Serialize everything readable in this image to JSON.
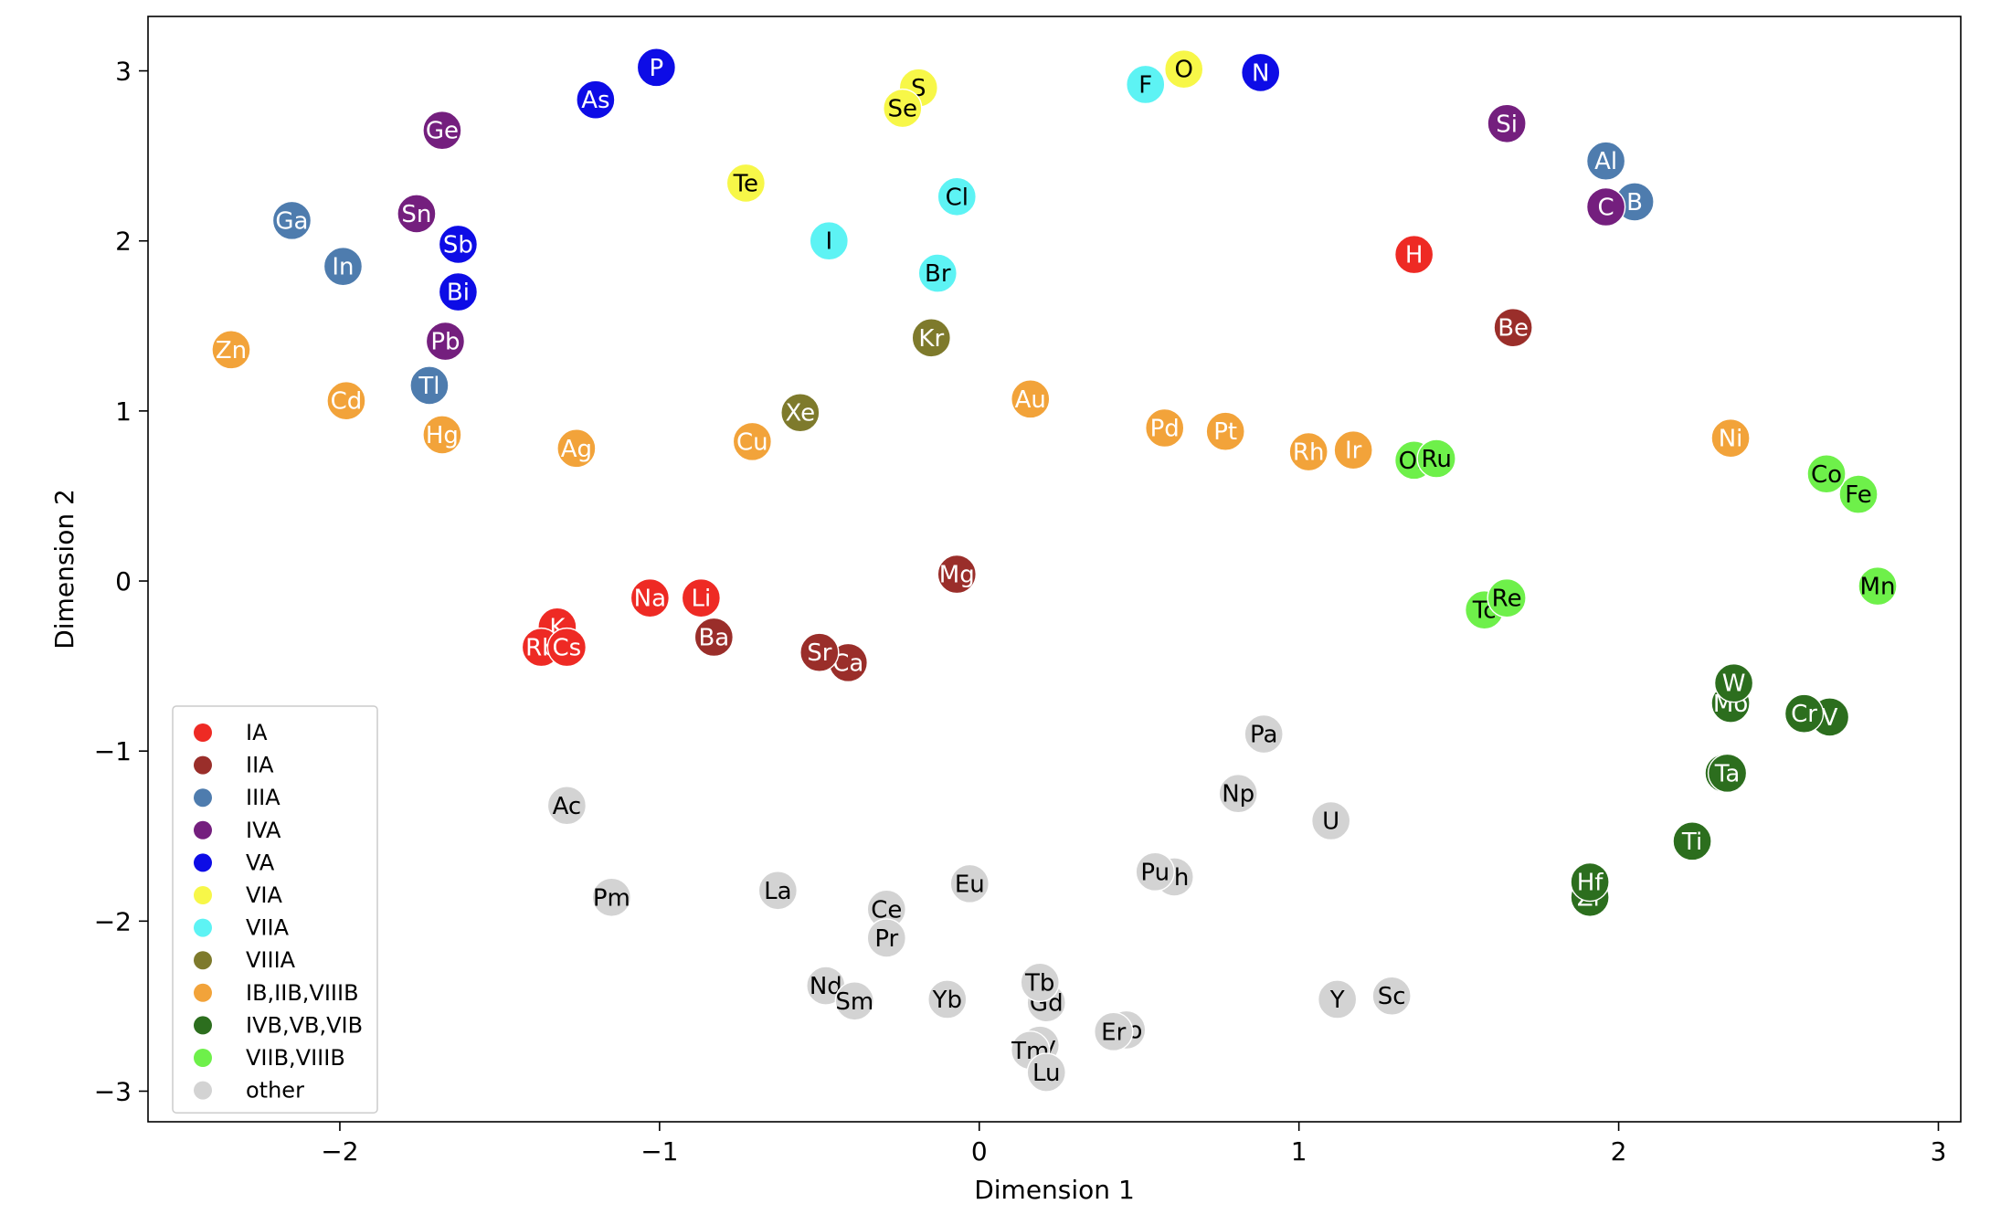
{
  "chart_data": {
    "type": "scatter",
    "title": "",
    "xlabel": "Dimension 1",
    "ylabel": "Dimension 2",
    "xlim": [
      -2.6,
      3.07
    ],
    "ylim": [
      -3.18,
      3.32
    ],
    "xticks": [
      -2,
      -1,
      0,
      1,
      2,
      3
    ],
    "yticks": [
      -3,
      -2,
      -1,
      0,
      1,
      2,
      3
    ],
    "xtick_labels": [
      "−2",
      "−1",
      "0",
      "1",
      "2",
      "3"
    ],
    "ytick_labels": [
      "−3",
      "−2",
      "−1",
      "0",
      "1",
      "2",
      "3"
    ],
    "grid": false,
    "legend_position": "lower-left",
    "groups": [
      {
        "name": "IA",
        "color": "#ee2a24",
        "label_color": "#ffffff"
      },
      {
        "name": "IIA",
        "color": "#9a2e2a",
        "label_color": "#ffffff"
      },
      {
        "name": "IIIA",
        "color": "#4e7cae",
        "label_color": "#ffffff"
      },
      {
        "name": "IVA",
        "color": "#741f7e",
        "label_color": "#ffffff"
      },
      {
        "name": "VA",
        "color": "#0d0ce6",
        "label_color": "#ffffff"
      },
      {
        "name": "VIA",
        "color": "#f7f748",
        "label_color": "#000000"
      },
      {
        "name": "VIIA",
        "color": "#5df3f4",
        "label_color": "#000000"
      },
      {
        "name": "VIIIA",
        "color": "#7e7a2c",
        "label_color": "#ffffff"
      },
      {
        "name": "IB,IIB,VIIIB",
        "color": "#f2a33a",
        "label_color": "#ffffff"
      },
      {
        "name": "IVB,VB,VIB",
        "color": "#2c6e1e",
        "label_color": "#ffffff"
      },
      {
        "name": "VIIB,VIIIB",
        "color": "#6ef04a",
        "label_color": "#000000"
      },
      {
        "name": "other",
        "color": "#d3d3d3",
        "label_color": "#000000"
      }
    ],
    "points": [
      {
        "label": "Li",
        "x": -0.87,
        "y": -0.1,
        "group": "IA"
      },
      {
        "label": "Na",
        "x": -1.03,
        "y": -0.1,
        "group": "IA"
      },
      {
        "label": "K",
        "x": -1.32,
        "y": -0.27,
        "group": "IA"
      },
      {
        "label": "Rb",
        "x": -1.37,
        "y": -0.39,
        "group": "IA"
      },
      {
        "label": "Cs",
        "x": -1.29,
        "y": -0.39,
        "group": "IA"
      },
      {
        "label": "H",
        "x": 1.36,
        "y": 1.92,
        "group": "IA"
      },
      {
        "label": "Be",
        "x": 1.67,
        "y": 1.49,
        "group": "IIA"
      },
      {
        "label": "Mg",
        "x": -0.07,
        "y": 0.04,
        "group": "IIA"
      },
      {
        "label": "Ca",
        "x": -0.41,
        "y": -0.48,
        "group": "IIA"
      },
      {
        "label": "Sr",
        "x": -0.5,
        "y": -0.42,
        "group": "IIA"
      },
      {
        "label": "Ba",
        "x": -0.83,
        "y": -0.33,
        "group": "IIA"
      },
      {
        "label": "B",
        "x": 2.05,
        "y": 2.23,
        "group": "IIIA"
      },
      {
        "label": "Al",
        "x": 1.96,
        "y": 2.47,
        "group": "IIIA"
      },
      {
        "label": "Ga",
        "x": -2.15,
        "y": 2.12,
        "group": "IIIA"
      },
      {
        "label": "In",
        "x": -1.99,
        "y": 1.85,
        "group": "IIIA"
      },
      {
        "label": "Tl",
        "x": -1.72,
        "y": 1.15,
        "group": "IIIA"
      },
      {
        "label": "C",
        "x": 1.96,
        "y": 2.2,
        "group": "IVA"
      },
      {
        "label": "Si",
        "x": 1.65,
        "y": 2.69,
        "group": "IVA"
      },
      {
        "label": "Ge",
        "x": -1.68,
        "y": 2.65,
        "group": "IVA"
      },
      {
        "label": "Sn",
        "x": -1.76,
        "y": 2.16,
        "group": "IVA"
      },
      {
        "label": "Pb",
        "x": -1.67,
        "y": 1.41,
        "group": "IVA"
      },
      {
        "label": "N",
        "x": 0.88,
        "y": 2.99,
        "group": "VA"
      },
      {
        "label": "P",
        "x": -1.01,
        "y": 3.02,
        "group": "VA"
      },
      {
        "label": "As",
        "x": -1.2,
        "y": 2.83,
        "group": "VA"
      },
      {
        "label": "Sb",
        "x": -1.63,
        "y": 1.98,
        "group": "VA"
      },
      {
        "label": "Bi",
        "x": -1.63,
        "y": 1.7,
        "group": "VA"
      },
      {
        "label": "O",
        "x": 0.64,
        "y": 3.01,
        "group": "VIA"
      },
      {
        "label": "S",
        "x": -0.19,
        "y": 2.9,
        "group": "VIA"
      },
      {
        "label": "Se",
        "x": -0.24,
        "y": 2.78,
        "group": "VIA"
      },
      {
        "label": "Te",
        "x": -0.73,
        "y": 2.34,
        "group": "VIA"
      },
      {
        "label": "F",
        "x": 0.52,
        "y": 2.92,
        "group": "VIIA"
      },
      {
        "label": "Cl",
        "x": -0.07,
        "y": 2.26,
        "group": "VIIA"
      },
      {
        "label": "Br",
        "x": -0.13,
        "y": 1.81,
        "group": "VIIA"
      },
      {
        "label": "I",
        "x": -0.47,
        "y": 2.0,
        "group": "VIIA"
      },
      {
        "label": "Kr",
        "x": -0.15,
        "y": 1.43,
        "group": "VIIIA"
      },
      {
        "label": "Xe",
        "x": -0.56,
        "y": 0.99,
        "group": "VIIIA"
      },
      {
        "label": "Zn",
        "x": -2.34,
        "y": 1.36,
        "group": "IB,IIB,VIIIB"
      },
      {
        "label": "Cd",
        "x": -1.98,
        "y": 1.06,
        "group": "IB,IIB,VIIIB"
      },
      {
        "label": "Hg",
        "x": -1.68,
        "y": 0.86,
        "group": "IB,IIB,VIIIB"
      },
      {
        "label": "Ag",
        "x": -1.26,
        "y": 0.78,
        "group": "IB,IIB,VIIIB"
      },
      {
        "label": "Cu",
        "x": -0.71,
        "y": 0.82,
        "group": "IB,IIB,VIIIB"
      },
      {
        "label": "Au",
        "x": 0.16,
        "y": 1.07,
        "group": "IB,IIB,VIIIB"
      },
      {
        "label": "Pd",
        "x": 0.58,
        "y": 0.9,
        "group": "IB,IIB,VIIIB"
      },
      {
        "label": "Pt",
        "x": 0.77,
        "y": 0.88,
        "group": "IB,IIB,VIIIB"
      },
      {
        "label": "Rh",
        "x": 1.03,
        "y": 0.76,
        "group": "IB,IIB,VIIIB"
      },
      {
        "label": "Ir",
        "x": 1.17,
        "y": 0.77,
        "group": "IB,IIB,VIIIB"
      },
      {
        "label": "Ni",
        "x": 2.35,
        "y": 0.84,
        "group": "IB,IIB,VIIIB"
      },
      {
        "label": "Ti",
        "x": 2.23,
        "y": -1.53,
        "group": "IVB,VB,VIB"
      },
      {
        "label": "Zr",
        "x": 1.91,
        "y": -1.86,
        "group": "IVB,VB,VIB"
      },
      {
        "label": "Hf",
        "x": 1.91,
        "y": -1.77,
        "group": "IVB,VB,VIB"
      },
      {
        "label": "V",
        "x": 2.66,
        "y": -0.8,
        "group": "IVB,VB,VIB"
      },
      {
        "label": "Nb",
        "x": 2.33,
        "y": -1.13,
        "group": "IVB,VB,VIB"
      },
      {
        "label": "Ta",
        "x": 2.34,
        "y": -1.13,
        "group": "IVB,VB,VIB"
      },
      {
        "label": "Cr",
        "x": 2.58,
        "y": -0.78,
        "group": "IVB,VB,VIB"
      },
      {
        "label": "Mo",
        "x": 2.35,
        "y": -0.72,
        "group": "IVB,VB,VIB"
      },
      {
        "label": "W",
        "x": 2.36,
        "y": -0.6,
        "group": "IVB,VB,VIB"
      },
      {
        "label": "Mn",
        "x": 2.81,
        "y": -0.03,
        "group": "VIIB,VIIIB"
      },
      {
        "label": "Tc",
        "x": 1.58,
        "y": -0.17,
        "group": "VIIB,VIIIB"
      },
      {
        "label": "Re",
        "x": 1.65,
        "y": -0.1,
        "group": "VIIB,VIIIB"
      },
      {
        "label": "Fe",
        "x": 2.75,
        "y": 0.51,
        "group": "VIIB,VIIIB"
      },
      {
        "label": "Co",
        "x": 2.65,
        "y": 0.63,
        "group": "VIIB,VIIIB"
      },
      {
        "label": "Os",
        "x": 1.36,
        "y": 0.71,
        "group": "VIIB,VIIIB"
      },
      {
        "label": "Ru",
        "x": 1.43,
        "y": 0.72,
        "group": "VIIB,VIIIB"
      },
      {
        "label": "Sc",
        "x": 1.29,
        "y": -2.44,
        "group": "other"
      },
      {
        "label": "Y",
        "x": 1.12,
        "y": -2.46,
        "group": "other"
      },
      {
        "label": "La",
        "x": -0.63,
        "y": -1.82,
        "group": "other"
      },
      {
        "label": "Ce",
        "x": -0.29,
        "y": -1.93,
        "group": "other"
      },
      {
        "label": "Pr",
        "x": -0.29,
        "y": -2.1,
        "group": "other"
      },
      {
        "label": "Nd",
        "x": -0.48,
        "y": -2.38,
        "group": "other"
      },
      {
        "label": "Pm",
        "x": -1.15,
        "y": -1.86,
        "group": "other"
      },
      {
        "label": "Sm",
        "x": -0.39,
        "y": -2.47,
        "group": "other"
      },
      {
        "label": "Eu",
        "x": -0.03,
        "y": -1.78,
        "group": "other"
      },
      {
        "label": "Gd",
        "x": 0.21,
        "y": -2.48,
        "group": "other"
      },
      {
        "label": "Tb",
        "x": 0.19,
        "y": -2.36,
        "group": "other"
      },
      {
        "label": "Dy",
        "x": 0.19,
        "y": -2.73,
        "group": "other"
      },
      {
        "label": "Ho",
        "x": 0.46,
        "y": -2.64,
        "group": "other"
      },
      {
        "label": "Er",
        "x": 0.42,
        "y": -2.65,
        "group": "other"
      },
      {
        "label": "Tm",
        "x": 0.16,
        "y": -2.76,
        "group": "other"
      },
      {
        "label": "Yb",
        "x": -0.1,
        "y": -2.46,
        "group": "other"
      },
      {
        "label": "Lu",
        "x": 0.21,
        "y": -2.89,
        "group": "other"
      },
      {
        "label": "Ac",
        "x": -1.29,
        "y": -1.32,
        "group": "other"
      },
      {
        "label": "Th",
        "x": 0.61,
        "y": -1.74,
        "group": "other"
      },
      {
        "label": "Pa",
        "x": 0.89,
        "y": -0.9,
        "group": "other"
      },
      {
        "label": "U",
        "x": 1.1,
        "y": -1.41,
        "group": "other"
      },
      {
        "label": "Np",
        "x": 0.81,
        "y": -1.25,
        "group": "other"
      },
      {
        "label": "Pu",
        "x": 0.55,
        "y": -1.71,
        "group": "other"
      }
    ]
  }
}
